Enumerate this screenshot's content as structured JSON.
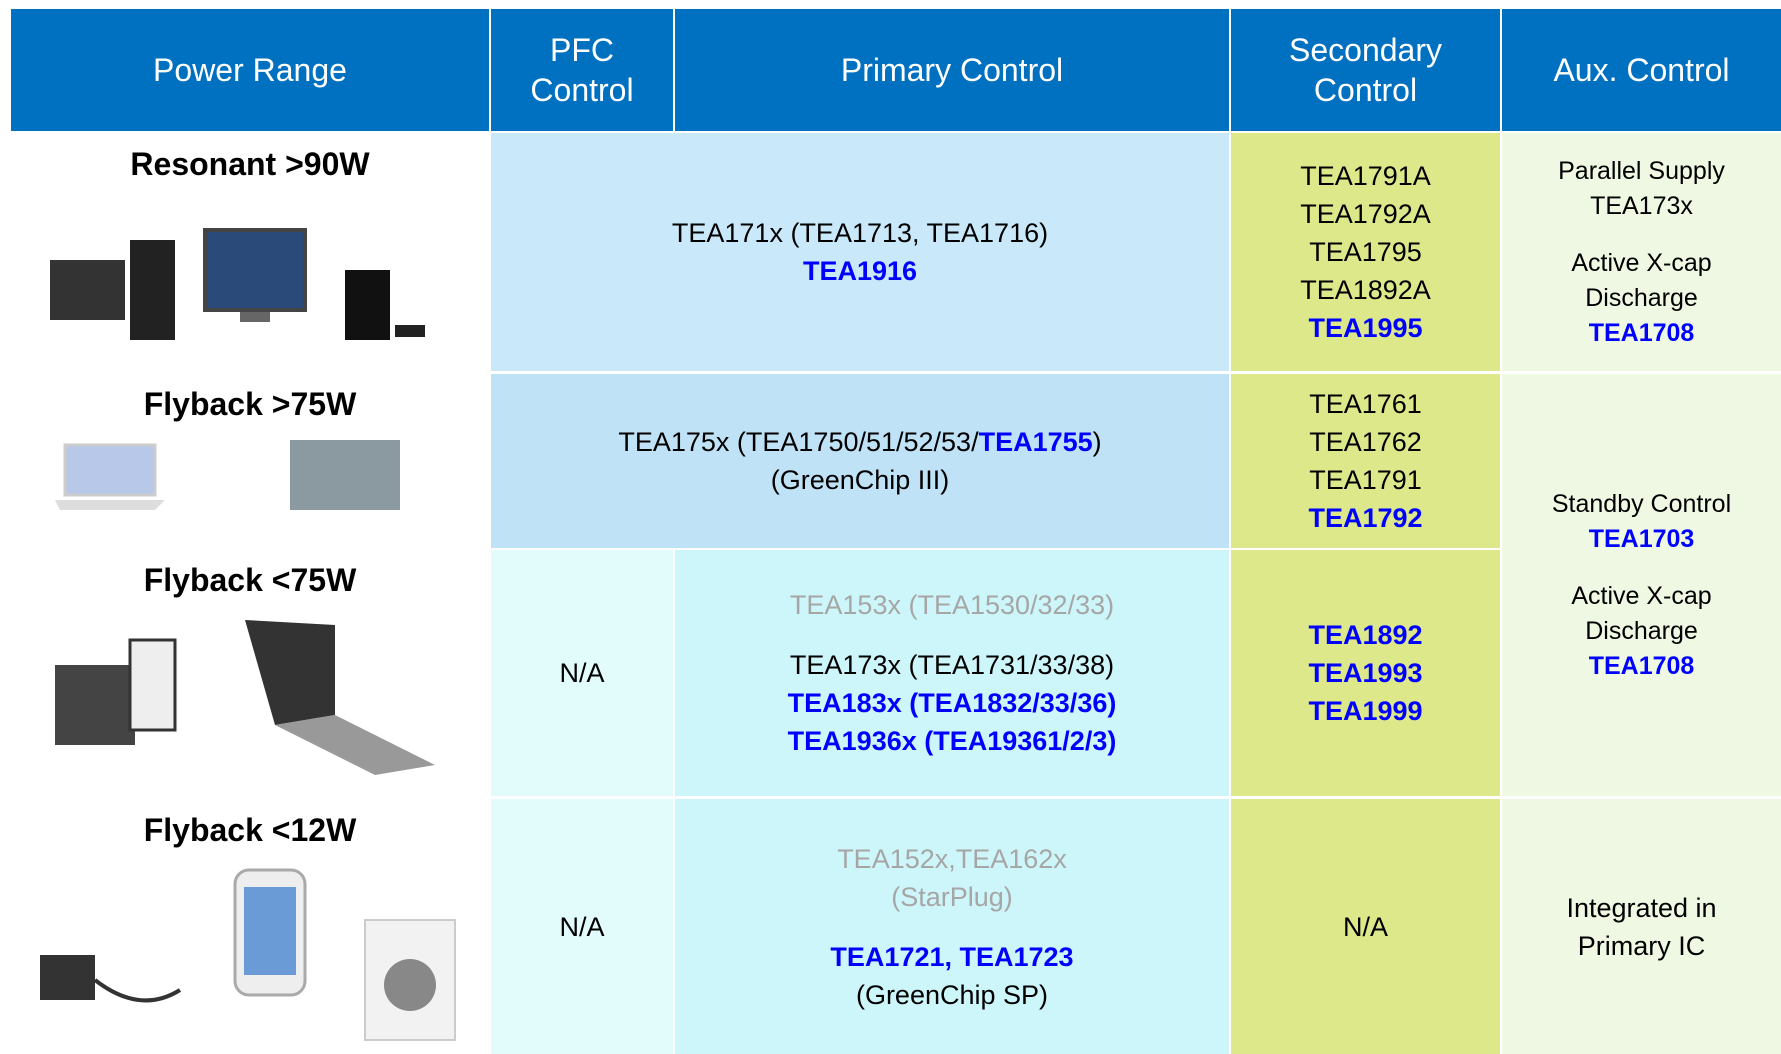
{
  "header": [
    "Power Range",
    "PFC Control",
    "Primary Control",
    "Secondary Control",
    "Aux. Control"
  ],
  "rows": [
    {
      "label": "Resonant >90W",
      "primary": [
        [
          [
            {
              "text": "TEA171x (TEA1713, TEA1716)"
            }
          ],
          [
            {
              "text": "TEA1916",
              "color": "#0000ff",
              "bold": true
            }
          ]
        ]
      ],
      "secondary": [
        [
          [
            {
              "text": "TEA1791A"
            }
          ],
          [
            {
              "text": "TEA1792A"
            }
          ],
          [
            {
              "text": "TEA1795"
            }
          ],
          [
            {
              "text": "TEA1892A"
            }
          ],
          [
            {
              "text": "TEA1995",
              "color": "#0000ff",
              "bold": true
            }
          ]
        ]
      ],
      "aux": [
        [
          [
            {
              "text": "Parallel Supply"
            }
          ],
          [
            {
              "text": "TEA173x"
            }
          ]
        ],
        [
          [
            {
              "text": "Active X-cap"
            }
          ],
          [
            {
              "text": "Discharge"
            }
          ],
          [
            {
              "text": "TEA1708",
              "color": "#0000ff",
              "bold": true
            }
          ]
        ]
      ]
    },
    {
      "label": "Flyback >75W",
      "primary": [
        [
          [
            {
              "text": "TEA175x (TEA1750/51/52/53/"
            },
            {
              "text": "TEA1755",
              "color": "#0000ff",
              "bold": true
            },
            {
              "text": ")"
            }
          ],
          [
            {
              "text": "(GreenChip III)"
            }
          ]
        ]
      ],
      "secondary": [
        [
          [
            {
              "text": "TEA1761"
            }
          ],
          [
            {
              "text": "TEA1762"
            }
          ],
          [
            {
              "text": "TEA1791"
            }
          ],
          [
            {
              "text": "TEA1792",
              "color": "#0000ff",
              "bold": true
            }
          ]
        ]
      ],
      "aux": [
        [
          [
            {
              "text": "Standby Control"
            }
          ],
          [
            {
              "text": "TEA1703",
              "color": "#0000ff",
              "bold": true
            }
          ]
        ],
        [
          [
            {
              "text": "Active X-cap"
            }
          ],
          [
            {
              "text": "Discharge"
            }
          ],
          [
            {
              "text": "TEA1708",
              "color": "#0000ff",
              "bold": true
            }
          ]
        ]
      ]
    },
    {
      "label": "Flyback <75W",
      "pfc": [
        [
          [
            {
              "text": "N/A"
            }
          ]
        ]
      ],
      "primary": [
        [
          [
            {
              "text": "TEA153x (TEA1530/32/33)",
              "color": "#a6a6a6"
            }
          ]
        ],
        [
          [
            {
              "text": "TEA173x (TEA1731/33/38)"
            }
          ],
          [
            {
              "text": "TEA183x (TEA1832/33/36)",
              "color": "#0000ff",
              "bold": true
            }
          ],
          [
            {
              "text": "TEA1936x (TEA19361/2/3)",
              "color": "#0000ff",
              "bold": true
            }
          ]
        ]
      ],
      "secondary": [
        [
          [
            {
              "text": "TEA1892",
              "color": "#0000ff",
              "bold": true
            }
          ],
          [
            {
              "text": "TEA1993",
              "color": "#0000ff",
              "bold": true
            }
          ],
          [
            {
              "text": "TEA1999",
              "color": "#0000ff",
              "bold": true
            }
          ]
        ]
      ]
    },
    {
      "label": "Flyback <12W",
      "pfc": [
        [
          [
            {
              "text": "N/A"
            }
          ]
        ]
      ],
      "primary": [
        [
          [
            {
              "text": "TEA152x,TEA162x",
              "color": "#a6a6a6"
            }
          ],
          [
            {
              "text": "(StarPlug)",
              "color": "#a6a6a6"
            }
          ]
        ],
        [
          [
            {
              "text": "TEA1721, TEA1723",
              "color": "#0000ff",
              "bold": true
            }
          ],
          [
            {
              "text": "(GreenChip SP)"
            }
          ]
        ]
      ],
      "secondary": [
        [
          [
            {
              "text": "N/A"
            }
          ]
        ]
      ],
      "aux": [
        [
          [
            {
              "text": "Integrated in"
            }
          ],
          [
            {
              "text": "Primary IC"
            }
          ]
        ]
      ]
    }
  ]
}
